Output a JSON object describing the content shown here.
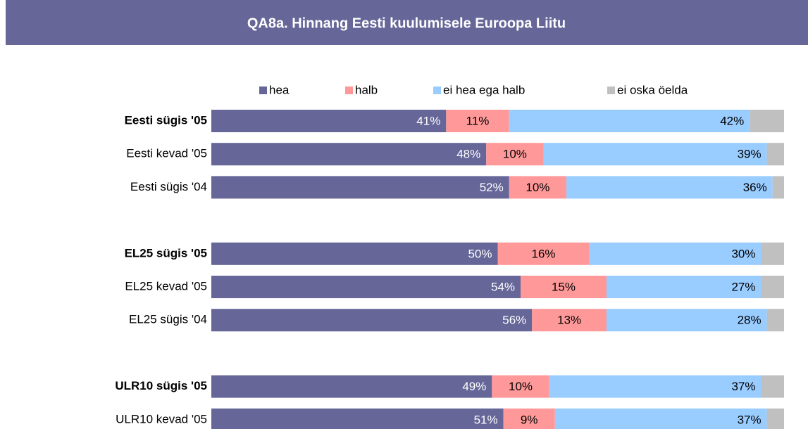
{
  "chart_data": {
    "type": "stacked-bar-horizontal",
    "title": "QA8a. Hinnang Eesti kuulumisele Euroopa Liitu",
    "categories": [
      "Eesti sügis '05",
      "Eesti kevad '05",
      "Eesti sügis '04",
      null,
      "EL25 sügis '05",
      "EL25 kevad '05",
      "EL25 sügis '04",
      null,
      "ULR10 sügis '05",
      "ULR10 kevad '05"
    ],
    "series": [
      {
        "name": "hea",
        "color": "#666699",
        "values": [
          41,
          48,
          52,
          null,
          50,
          54,
          56,
          null,
          49,
          51
        ],
        "value_labels": [
          "41%",
          "48%",
          "52%",
          null,
          "50%",
          "54%",
          "56%",
          null,
          "49%",
          "51%"
        ]
      },
      {
        "name": "halb",
        "color": "#ff9999",
        "values": [
          11,
          10,
          10,
          null,
          16,
          15,
          13,
          null,
          10,
          9
        ],
        "value_labels": [
          "11%",
          "10%",
          "10%",
          null,
          "16%",
          "15%",
          "13%",
          null,
          "10%",
          "9%"
        ]
      },
      {
        "name": "ei hea ega halb",
        "color": "#99ccff",
        "values": [
          42,
          39,
          36,
          null,
          30,
          27,
          28,
          null,
          37,
          37
        ],
        "value_labels": [
          "42%",
          "39%",
          "36%",
          null,
          "30%",
          "27%",
          "28%",
          null,
          "37%",
          "37%"
        ]
      },
      {
        "name": "ei oska öelda",
        "color": "#c0c0c0",
        "values": [
          6,
          3,
          2,
          null,
          4,
          4,
          3,
          null,
          4,
          3
        ]
      }
    ],
    "xlim": [
      0,
      100
    ]
  }
}
